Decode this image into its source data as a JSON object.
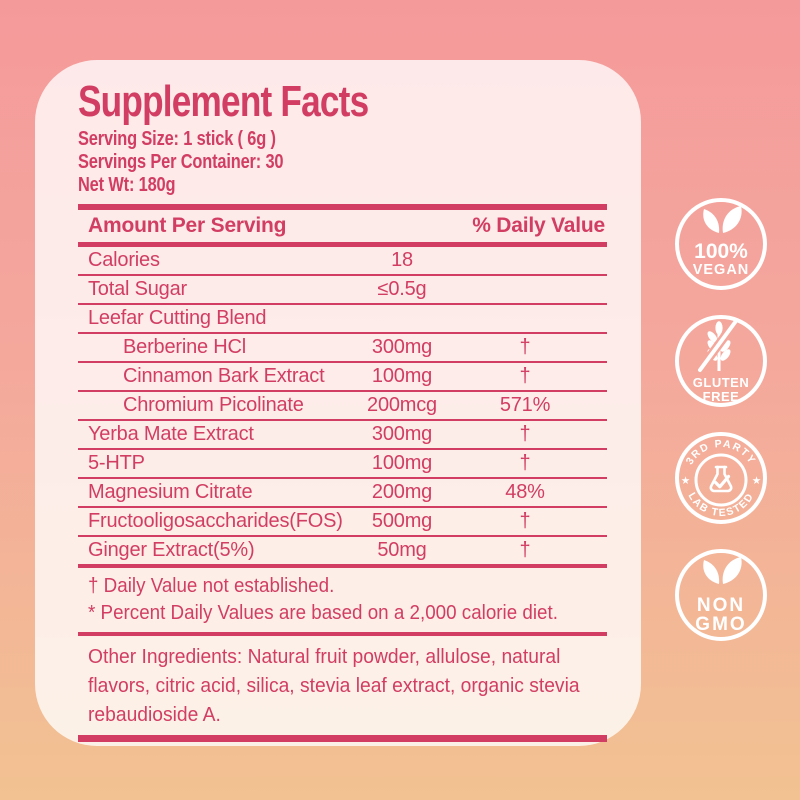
{
  "colors": {
    "accent": "#d23d63",
    "bg_top": "#f59a9b",
    "bg_mid": "#f4a89c",
    "bg_bottom": "#f2c292",
    "badge": "#ffffff"
  },
  "panel": {
    "title": "Supplement Facts",
    "serving_lines": [
      "Serving Size: 1 stick ( 6g )",
      "Servings Per Container: 30",
      "Net Wt: 180g"
    ]
  },
  "table": {
    "header": {
      "left": "Amount Per Serving",
      "right": "% Daily Value"
    },
    "rows": [
      {
        "name": "Calories",
        "amount": "18",
        "dv": "",
        "indent": false
      },
      {
        "name": "Total Sugar",
        "amount": "≤0.5g",
        "dv": "",
        "indent": false
      },
      {
        "name": "Leefar Cutting Blend",
        "amount": "",
        "dv": "",
        "indent": false
      },
      {
        "name": "Berberine HCl",
        "amount": "300mg",
        "dv": "†",
        "indent": true
      },
      {
        "name": "Cinnamon Bark Extract",
        "amount": "100mg",
        "dv": "†",
        "indent": true
      },
      {
        "name": "Chromium Picolinate",
        "amount": "200mcg",
        "dv": "571%",
        "indent": true
      },
      {
        "name": "Yerba Mate Extract",
        "amount": "300mg",
        "dv": "†",
        "indent": false
      },
      {
        "name": "5-HTP",
        "amount": "100mg",
        "dv": "†",
        "indent": false
      },
      {
        "name": "Magnesium Citrate",
        "amount": "200mg",
        "dv": "48%",
        "indent": false
      },
      {
        "name": "Fructooligosaccharides(FOS)",
        "amount": "500mg",
        "dv": "†",
        "indent": false
      },
      {
        "name": "Ginger Extract(5%)",
        "amount": "50mg",
        "dv": "†",
        "indent": false
      }
    ],
    "footnotes": [
      "† Daily Value not established.",
      "* Percent Daily Values are based on a 2,000 calorie diet."
    ],
    "other_ingredients_lines": [
      "Other Ingredients: Natural fruit powder, allulose, natural",
      "flavors, citric acid, silica, stevia leaf extract, organic stevia",
      "rebaudioside A."
    ]
  },
  "badges": [
    {
      "id": "vegan",
      "icon": "leaves-icon",
      "line1": "100%",
      "line2": "VEGAN"
    },
    {
      "id": "gluten-free",
      "icon": "wheat-slash-icon",
      "line1": "GLUTEN",
      "line2": "FREE"
    },
    {
      "id": "lab-tested",
      "icon": "flask-check-icon",
      "ring_top": "3RD PARTY",
      "ring_bottom": "LAB TESTED",
      "star": "★"
    },
    {
      "id": "non-gmo",
      "icon": "leaves-icon",
      "line1": "NON",
      "line2": "GMO"
    }
  ]
}
